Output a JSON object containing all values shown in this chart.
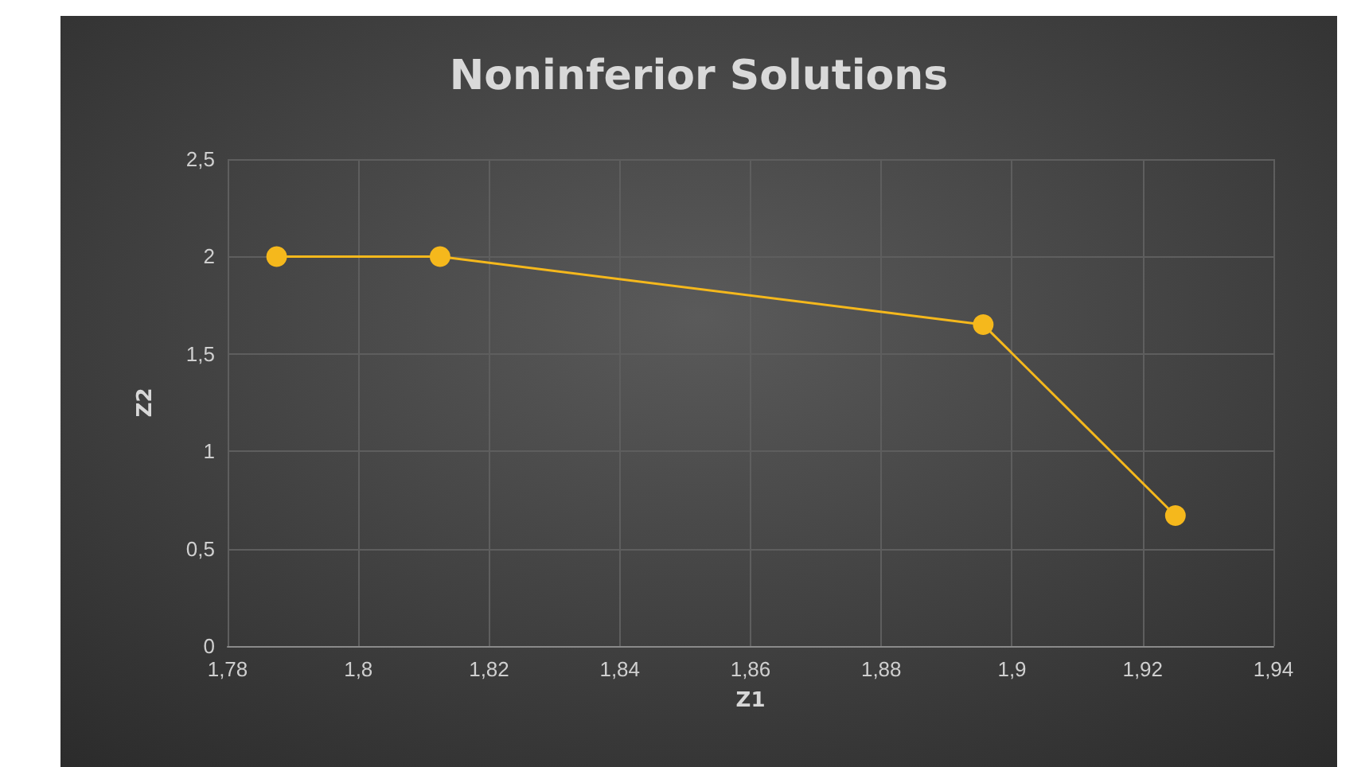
{
  "chart_data": {
    "type": "line",
    "title": "Noninferior Solutions",
    "xlabel": "Z1",
    "ylabel": "Z2",
    "x": [
      1.7875,
      1.8125,
      1.8956,
      1.925
    ],
    "series": [
      {
        "color": "#f5b81c",
        "values": [
          2,
          2,
          1.65,
          0.67
        ]
      }
    ],
    "xlim": [
      1.78,
      1.94
    ],
    "xticks": [
      {
        "value": 1.78,
        "label": "1,78"
      },
      {
        "value": 1.8,
        "label": "1,8"
      },
      {
        "value": 1.82,
        "label": "1,82"
      },
      {
        "value": 1.84,
        "label": "1,84"
      },
      {
        "value": 1.86,
        "label": "1,86"
      },
      {
        "value": 1.88,
        "label": "1,88"
      },
      {
        "value": 1.9,
        "label": "1,9"
      },
      {
        "value": 1.92,
        "label": "1,92"
      },
      {
        "value": 1.94,
        "label": "1,94"
      }
    ],
    "ylim": [
      0,
      2.5
    ],
    "yticks": [
      0,
      {
        "value": 0.5,
        "label": "0,5"
      },
      1,
      {
        "value": 1.5,
        "label": "1,5"
      },
      2,
      {
        "value": 2.5,
        "label": "2,5"
      }
    ],
    "grid": true,
    "marker": "circle",
    "line_style": "solid"
  }
}
